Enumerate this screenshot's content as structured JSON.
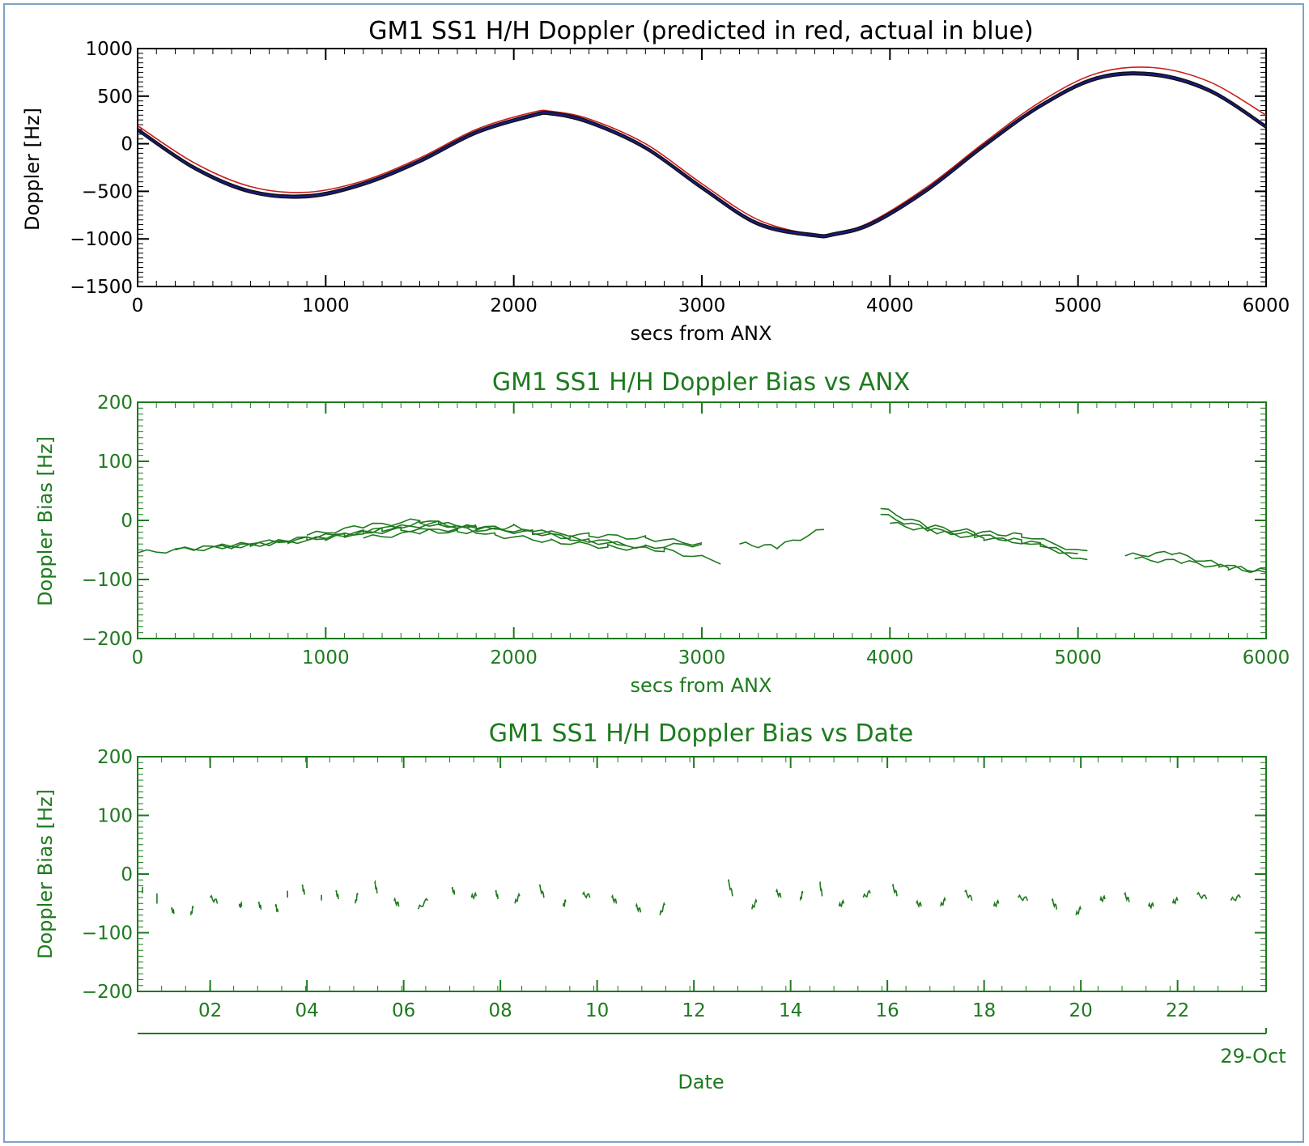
{
  "colors": {
    "panel1_axes": "#000000",
    "predicted": "#c81e1e",
    "actual": "#1a1a80",
    "green": "#1e7a1e",
    "frame": "#7da2c8"
  },
  "chart_data": [
    {
      "type": "line",
      "title": "GM1 SS1 H/H Doppler (predicted in red, actual in blue)",
      "xlabel": "secs from ANX",
      "ylabel": "Doppler [Hz]",
      "xlim": [
        0,
        6000
      ],
      "ylim": [
        -1500,
        1000
      ],
      "xticks": [
        0,
        1000,
        2000,
        3000,
        4000,
        5000,
        6000
      ],
      "yticks": [
        1000,
        500,
        0,
        -500,
        -1000,
        -1500
      ],
      "series": [
        {
          "color": "#c81e1e",
          "x": [
            0,
            300,
            600,
            900,
            1200,
            1500,
            1800,
            2100,
            2200,
            2400,
            2700,
            3000,
            3300,
            3600,
            3700,
            3900,
            4200,
            4500,
            4800,
            5100,
            5400,
            5700,
            6000
          ],
          "y": [
            190,
            -200,
            -450,
            -510,
            -390,
            -150,
            150,
            330,
            340,
            260,
            0,
            -420,
            -800,
            -960,
            -950,
            -820,
            -450,
            10,
            440,
            740,
            800,
            650,
            300
          ]
        },
        {
          "color": "#1a1a80",
          "x": [
            0,
            300,
            600,
            900,
            1200,
            1500,
            1800,
            2100,
            2200,
            2400,
            2700,
            3000,
            3300,
            3600,
            3700,
            3900,
            4200,
            4500,
            4800,
            5100,
            5400,
            5700,
            6000
          ],
          "y": [
            150,
            -250,
            -500,
            -550,
            -420,
            -180,
            120,
            300,
            320,
            230,
            -40,
            -460,
            -840,
            -960,
            -950,
            -840,
            -480,
            -20,
            400,
            690,
            730,
            560,
            180
          ]
        }
      ]
    },
    {
      "type": "line",
      "title": "GM1 SS1 H/H Doppler Bias vs ANX",
      "xlabel": "secs from ANX",
      "ylabel": "Doppler Bias [Hz]",
      "xlim": [
        0,
        6000
      ],
      "ylim": [
        -200,
        200
      ],
      "xticks": [
        0,
        1000,
        2000,
        3000,
        4000,
        5000,
        6000
      ],
      "yticks": [
        200,
        100,
        0,
        -100,
        -200
      ],
      "series": [
        {
          "x": [
            0,
            300,
            600,
            900,
            1200,
            1500,
            1800
          ],
          "y": [
            -55,
            -48,
            -40,
            -30,
            -20,
            -5,
            -10
          ]
        },
        {
          "x": [
            200,
            500,
            800,
            1100,
            1400,
            1700,
            2000,
            2300,
            2600
          ],
          "y": [
            -50,
            -45,
            -35,
            -25,
            -15,
            -20,
            -10,
            -30,
            -40
          ]
        },
        {
          "x": [
            400,
            700,
            1000,
            1300,
            1600,
            1900,
            2200,
            2500,
            2800,
            3100
          ],
          "y": [
            -45,
            -40,
            -30,
            -15,
            -5,
            -25,
            -35,
            -45,
            -50,
            -70
          ]
        },
        {
          "x": [
            900,
            1200,
            1500,
            1800,
            2100,
            2400,
            2700,
            3000
          ],
          "y": [
            -25,
            -10,
            0,
            -15,
            -20,
            -35,
            -45,
            -40
          ]
        },
        {
          "x": [
            1200,
            1500,
            1800,
            2100,
            2400,
            2700,
            3000
          ],
          "y": [
            -30,
            -20,
            -10,
            -20,
            -25,
            -30,
            -40
          ]
        },
        {
          "x": [
            3200,
            3400,
            3650
          ],
          "y": [
            -40,
            -45,
            -15
          ]
        },
        {
          "x": [
            3950,
            4200,
            4450,
            4700,
            5050
          ],
          "y": [
            20,
            -10,
            -20,
            -25,
            -55
          ]
        },
        {
          "x": [
            3950,
            4200,
            4450,
            4700,
            5000
          ],
          "y": [
            10,
            -15,
            -25,
            -35,
            -60
          ]
        },
        {
          "x": [
            4000,
            4250,
            4500,
            4800,
            5050
          ],
          "y": [
            -5,
            -20,
            -30,
            -40,
            -70
          ]
        },
        {
          "x": [
            5250,
            5500,
            5750,
            6000
          ],
          "y": [
            -60,
            -55,
            -75,
            -90
          ]
        },
        {
          "x": [
            5300,
            5550,
            5800,
            6000
          ],
          "y": [
            -65,
            -70,
            -80,
            -85
          ]
        }
      ]
    },
    {
      "type": "line",
      "title": "GM1 SS1 H/H Doppler Bias vs Date",
      "xlabel": "Date",
      "ylabel": "Doppler Bias [Hz]",
      "xlim": [
        "2007-10-29 00:30",
        "2007-10-29 23:50"
      ],
      "ylim": [
        -200,
        200
      ],
      "xticks": [
        "02",
        "04",
        "06",
        "08",
        "10",
        "12",
        "14",
        "16",
        "18",
        "20",
        "22"
      ],
      "xticks_hours": [
        2,
        4,
        6,
        8,
        10,
        12,
        14,
        16,
        18,
        20,
        22
      ],
      "yticks": [
        200,
        100,
        0,
        -100,
        -200
      ],
      "date_label": "29-Oct",
      "series": [
        {
          "x": [
            0.6,
            0.9,
            1.2,
            1.6,
            2.0,
            2.6,
            3.0,
            3.4,
            3.6,
            3.9,
            4.3,
            4.6,
            5.0,
            5.4,
            5.8,
            6.3,
            7.0,
            7.4,
            7.9,
            8.3,
            8.8,
            9.3,
            9.7,
            10.3,
            10.8,
            11.3,
            11.8
          ],
          "y": [
            -25,
            -35,
            -60,
            -70,
            -40,
            -55,
            -50,
            -65,
            -40,
            -20,
            -45,
            -30,
            -50,
            -15,
            -45,
            -60,
            -25,
            -40,
            -30,
            -50,
            -20,
            -55,
            -35,
            -40,
            -55,
            -70,
            -30
          ]
        },
        {
          "x": [
            12.7,
            13.2,
            13.7,
            14.2,
            14.6,
            15.0,
            15.5,
            16.1,
            16.6,
            17.1,
            17.6,
            18.2,
            18.7,
            19.4,
            19.9,
            20.4,
            20.9,
            21.4,
            21.9,
            22.4,
            23.1,
            23.8
          ],
          "y": [
            -10,
            -60,
            -30,
            -45,
            -15,
            -55,
            -40,
            -20,
            -50,
            -55,
            -30,
            -55,
            -40,
            -45,
            -70,
            -45,
            -35,
            -55,
            -50,
            -35,
            -45,
            -30
          ]
        }
      ]
    }
  ]
}
